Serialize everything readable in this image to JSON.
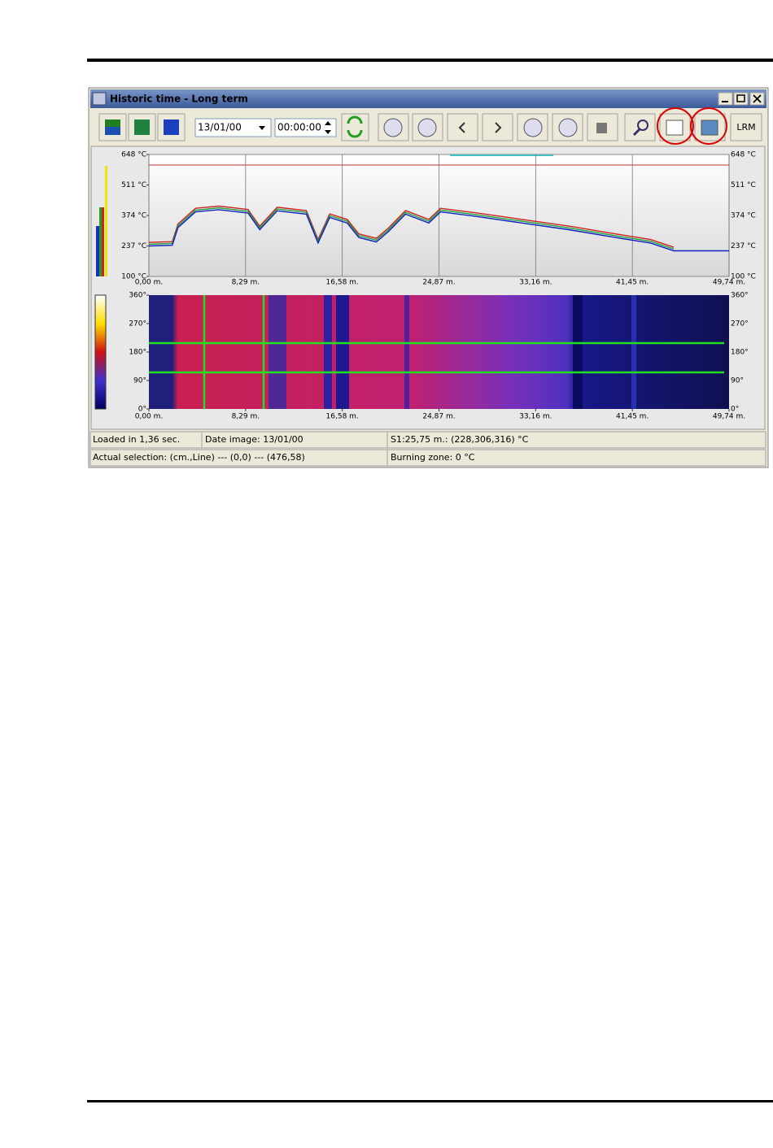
{
  "window": {
    "title": "Historic time - Long term",
    "date": "13/01/00",
    "time": "00:00:00",
    "lrm_button": "LRM"
  },
  "chart": {
    "type": "line",
    "xlim": [
      0,
      49.74
    ],
    "ylim": [
      100,
      648
    ],
    "yticks": [
      {
        "value": 648,
        "label": "648 °C"
      },
      {
        "value": 511,
        "label": "511 °C"
      },
      {
        "value": 374,
        "label": "374 °C"
      },
      {
        "value": 237,
        "label": "237 °C"
      },
      {
        "value": 100,
        "label": "100 °C"
      }
    ],
    "xticks": [
      {
        "value": 0,
        "label": "0,00 m."
      },
      {
        "value": 8.29,
        "label": "8,29 m."
      },
      {
        "value": 16.58,
        "label": "16,58 m."
      },
      {
        "value": 24.87,
        "label": "24,87 m."
      },
      {
        "value": 33.16,
        "label": "33,16 m."
      },
      {
        "value": 41.45,
        "label": "41,45 m."
      },
      {
        "value": 49.74,
        "label": "49,74 m."
      }
    ],
    "x": [
      0,
      2,
      2.5,
      4,
      6,
      8.5,
      9.5,
      11,
      13.5,
      14.5,
      15.5,
      17,
      18,
      19.5,
      20.5,
      22,
      24,
      25,
      28,
      32,
      36,
      40,
      43,
      45,
      46,
      49.74
    ],
    "series": [
      {
        "color": "#d02020",
        "values": [
          253,
          256,
          336,
          406,
          416,
          401,
          326,
          411,
          396,
          266,
          381,
          356,
          291,
          271,
          316,
          396,
          356,
          406,
          386,
          356,
          326,
          291,
          266,
          231,
          null,
          null
        ]
      },
      {
        "color": "#20a040",
        "values": [
          245,
          248,
          328,
          398,
          408,
          393,
          318,
          403,
          388,
          258,
          373,
          348,
          283,
          263,
          308,
          388,
          348,
          398,
          378,
          348,
          318,
          283,
          258,
          223,
          null,
          null
        ]
      },
      {
        "color": "#1020c0",
        "values": [
          237,
          240,
          320,
          390,
          400,
          385,
          310,
          395,
          380,
          250,
          365,
          340,
          275,
          255,
          300,
          380,
          340,
          390,
          370,
          340,
          310,
          275,
          250,
          215,
          215,
          215
        ]
      }
    ]
  },
  "map": {
    "ylim": [
      0,
      360
    ],
    "yticks": [
      {
        "value": 360,
        "label": "360°"
      },
      {
        "value": 270,
        "label": "270°"
      },
      {
        "value": 180,
        "label": "180°"
      },
      {
        "value": 90,
        "label": "90°"
      },
      {
        "value": 0,
        "label": "0°"
      }
    ],
    "xticks": [
      {
        "value": 0,
        "label": "0,00 m."
      },
      {
        "value": 8.29,
        "label": "8,29 m."
      },
      {
        "value": 16.58,
        "label": "16,58 m."
      },
      {
        "value": 24.87,
        "label": "24,87 m."
      },
      {
        "value": 33.16,
        "label": "33,16 m."
      },
      {
        "value": 41.45,
        "label": "41,45 m."
      },
      {
        "value": 49.74,
        "label": "49,74 m."
      }
    ]
  },
  "status": {
    "loaded": "Loaded in 1,36 sec.",
    "date_image": "Date image: 13/01/00",
    "s1": "S1:25,75 m.: (228,306,316) °C",
    "selection": "Actual selection: (cm.,Line) --- (0,0) --- (476,58)",
    "burning_zone": "Burning zone: 0 °C"
  }
}
